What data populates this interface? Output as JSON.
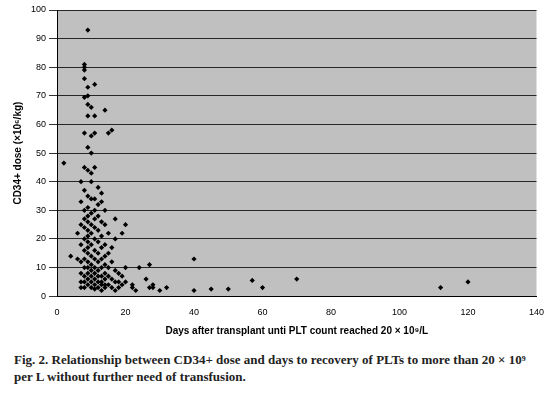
{
  "chart_data": {
    "type": "scatter",
    "x_label": "Days after transplant unti PLT count reached 20 × 10⁹/L",
    "y_label": "CD34+ dose (×10⁶/kg)",
    "caption": "Fig. 2. Relationship between CD34+ dose and days to recovery of PLTs to more than 20 × 10⁹ per L without further need of transfusion.",
    "color": "#000000",
    "marker": "diamond",
    "grid": "y",
    "xlim": [
      0,
      140
    ],
    "xticks": [
      0,
      20,
      40,
      60,
      80,
      100,
      120,
      140
    ],
    "ylim": [
      0,
      100
    ],
    "yticks": [
      0,
      10,
      20,
      30,
      40,
      50,
      60,
      70,
      80,
      90,
      100
    ],
    "x": [
      2,
      4,
      6,
      6,
      7,
      7,
      7,
      7,
      7,
      7,
      7,
      7,
      8,
      8,
      8,
      8,
      8,
      8,
      8,
      8,
      8,
      8,
      8,
      8,
      8,
      8,
      8,
      8,
      8,
      8,
      9,
      9,
      9,
      9,
      9,
      9,
      9,
      9,
      9,
      9,
      9,
      9,
      9,
      9,
      9,
      9,
      9,
      9,
      9,
      9,
      9,
      10,
      10,
      10,
      10,
      10,
      10,
      10,
      10,
      10,
      10,
      10,
      10,
      10,
      10,
      10,
      10,
      11,
      11,
      11,
      11,
      11,
      11,
      11,
      11,
      11,
      11,
      11,
      11,
      11,
      11,
      11,
      11,
      12,
      12,
      12,
      12,
      12,
      12,
      12,
      12,
      12,
      12,
      12,
      13,
      13,
      13,
      13,
      13,
      13,
      13,
      13,
      13,
      13,
      13,
      14,
      14,
      14,
      14,
      14,
      14,
      14,
      14,
      14,
      14,
      15,
      15,
      15,
      15,
      15,
      15,
      16,
      16,
      16,
      16,
      16,
      17,
      17,
      17,
      17,
      17,
      18,
      18,
      18,
      19,
      19,
      19,
      20,
      20,
      20,
      22,
      22,
      23,
      24,
      26,
      27,
      27,
      28,
      28,
      30,
      32,
      40,
      40,
      45,
      50,
      57,
      60,
      70,
      112,
      120
    ],
    "values": [
      46.5,
      14,
      13,
      22,
      40,
      33,
      25,
      18,
      12,
      8,
      5,
      3,
      81,
      80,
      79,
      76,
      69.5,
      57,
      45,
      37,
      30,
      27,
      24,
      20,
      16,
      13,
      10,
      7,
      5,
      3,
      93,
      73,
      70,
      67,
      63,
      52,
      44,
      35,
      31,
      28,
      26,
      23,
      21,
      19,
      17,
      15,
      12,
      10,
      8,
      6,
      4,
      66,
      56,
      50,
      43,
      40,
      34,
      29,
      25,
      22,
      18,
      14,
      11,
      9,
      7,
      5,
      3,
      74,
      63,
      57,
      45,
      34,
      30,
      27,
      24,
      20,
      16,
      13,
      10,
      8,
      6,
      4,
      2.5,
      38,
      32,
      28,
      23,
      19,
      15,
      12,
      9,
      7,
      5,
      3,
      36,
      33,
      26,
      21,
      17,
      13,
      10,
      7,
      5,
      4,
      2,
      65,
      30,
      25,
      18,
      14,
      11,
      8,
      6,
      4,
      3,
      57,
      22,
      15,
      10,
      7,
      4,
      58,
      17,
      12,
      6,
      3,
      27,
      20,
      9,
      5,
      2,
      8,
      5,
      3,
      22,
      7,
      4,
      25,
      10,
      5,
      4,
      3,
      2,
      10,
      6,
      11,
      3,
      4,
      3,
      2,
      3,
      13,
      2,
      2.5,
      2.5,
      5.5,
      3,
      6,
      3,
      5
    ]
  }
}
